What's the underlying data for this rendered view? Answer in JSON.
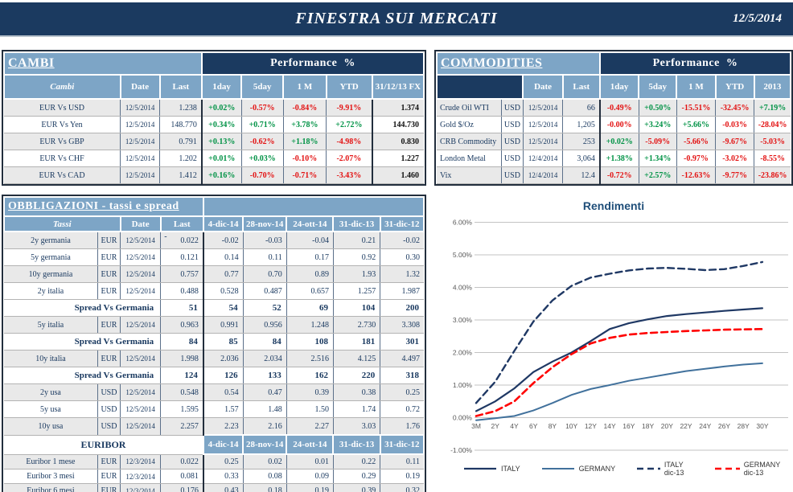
{
  "header": {
    "title": "FINESTRA SUI MERCATI",
    "date": "12/5/2014"
  },
  "colors": {
    "navy": "#1B3A60",
    "header_blue": "#7DA5C6",
    "row_alt": "#E9E9E9",
    "green": "#009245",
    "red": "#E31212",
    "text_navy": "#17375E",
    "grid_gray": "#C3C3C3"
  },
  "cambi": {
    "title": "CAMBI",
    "performance_label": "Performance  %",
    "columns": {
      "name": "Cambi",
      "date": "Date",
      "last": "Last",
      "perf": [
        "1day",
        "5day",
        "1 M",
        "YTD"
      ],
      "fx": "31/12/13 FX"
    },
    "rows": [
      {
        "name": "EUR Vs USD",
        "date": "12/5/2014",
        "last": "1.238",
        "perf": [
          "+0.02%",
          "-0.57%",
          "-0.84%",
          "-9.91%"
        ],
        "fx": "1.374"
      },
      {
        "name": "EUR Vs Yen",
        "date": "12/5/2014",
        "last": "148.770",
        "perf": [
          "+0.34%",
          "+0.71%",
          "+3.78%",
          "+2.72%"
        ],
        "fx": "144.730"
      },
      {
        "name": "EUR Vs GBP",
        "date": "12/5/2014",
        "last": "0.791",
        "perf": [
          "+0.13%",
          "-0.62%",
          "+1.18%",
          "-4.98%"
        ],
        "fx": "0.830"
      },
      {
        "name": "EUR Vs CHF",
        "date": "12/5/2014",
        "last": "1.202",
        "perf": [
          "+0.01%",
          "+0.03%",
          "-0.10%",
          "-2.07%"
        ],
        "fx": "1.227"
      },
      {
        "name": "EUR Vs CAD",
        "date": "12/5/2014",
        "last": "1.412",
        "perf": [
          "+0.16%",
          "-0.70%",
          "-0.71%",
          "-3.43%"
        ],
        "fx": "1.460"
      }
    ]
  },
  "commodities": {
    "title": "COMMODITIES",
    "performance_label": "Performance  %",
    "columns": {
      "date": "Date",
      "last": "Last",
      "perf": [
        "1day",
        "5day",
        "1 M",
        "YTD",
        "2013"
      ]
    },
    "rows": [
      {
        "name": "Crude Oil WTI",
        "ccy": "USD",
        "date": "12/5/2014",
        "last": "66",
        "perf": [
          "-0.49%",
          "+0.50%",
          "-15.51%",
          "-32.45%",
          "+7.19%"
        ]
      },
      {
        "name": "Gold $/Oz",
        "ccy": "USD",
        "date": "12/5/2014",
        "last": "1,205",
        "perf": [
          "-0.00%",
          "+3.24%",
          "+5.66%",
          "-0.03%",
          "-28.04%"
        ]
      },
      {
        "name": "CRB Commodity",
        "ccy": "USD",
        "date": "12/5/2014",
        "last": "253",
        "perf": [
          "+0.02%",
          "-5.09%",
          "-5.66%",
          "-9.67%",
          "-5.03%"
        ]
      },
      {
        "name": "London Metal",
        "ccy": "USD",
        "date": "12/4/2014",
        "last": "3,064",
        "perf": [
          "+1.38%",
          "+1.34%",
          "-0.97%",
          "-3.02%",
          "-8.55%"
        ]
      },
      {
        "name": "Vix",
        "ccy": "USD",
        "date": "12/4/2014",
        "last": "12.4",
        "perf": [
          "-0.72%",
          "+2.57%",
          "-12.63%",
          "-9.77%",
          "-23.86%"
        ]
      }
    ]
  },
  "obbligazioni": {
    "title": "OBBLIGAZIONI - tassi e spread",
    "columns": {
      "name": "Tassi",
      "date": "Date",
      "last": "Last",
      "dates": [
        "4-dic-14",
        "28-nov-14",
        "24-ott-14",
        "31-dic-13",
        "31-dic-12"
      ]
    },
    "rows": [
      {
        "type": "rate",
        "name": "2y germania",
        "ccy": "EUR",
        "date": "12/5/2014",
        "last_dash": "-",
        "last": "0.022",
        "values": [
          "-0.02",
          "-0.03",
          "-0.04",
          "0.21",
          "-0.02"
        ]
      },
      {
        "type": "rate",
        "name": "5y germania",
        "ccy": "EUR",
        "date": "12/5/2014",
        "last_dash": "",
        "last": "0.121",
        "values": [
          "0.14",
          "0.11",
          "0.17",
          "0.92",
          "0.30"
        ]
      },
      {
        "type": "rate",
        "name": "10y germania",
        "ccy": "EUR",
        "date": "12/5/2014",
        "last_dash": "",
        "last": "0.757",
        "values": [
          "0.77",
          "0.70",
          "0.89",
          "1.93",
          "1.32"
        ]
      },
      {
        "type": "rate",
        "name": "2y italia",
        "ccy": "EUR",
        "date": "12/5/2014",
        "last_dash": "",
        "last": "0.488",
        "values": [
          "0.528",
          "0.487",
          "0.657",
          "1.257",
          "1.987"
        ]
      },
      {
        "type": "spread",
        "label": "Spread Vs Germania",
        "last": "51",
        "values": [
          "54",
          "52",
          "69",
          "104",
          "200"
        ]
      },
      {
        "type": "rate",
        "name": "5y italia",
        "ccy": "EUR",
        "date": "12/5/2014",
        "last_dash": "",
        "last": "0.963",
        "values": [
          "0.991",
          "0.956",
          "1.248",
          "2.730",
          "3.308"
        ]
      },
      {
        "type": "spread",
        "label": "Spread Vs Germania",
        "last": "84",
        "values": [
          "85",
          "84",
          "108",
          "181",
          "301"
        ]
      },
      {
        "type": "rate",
        "name": "10y italia",
        "ccy": "EUR",
        "date": "12/5/2014",
        "last_dash": "",
        "last": "1.998",
        "values": [
          "2.036",
          "2.034",
          "2.516",
          "4.125",
          "4.497"
        ]
      },
      {
        "type": "spread",
        "label": "Spread Vs Germania",
        "last": "124",
        "values": [
          "126",
          "133",
          "162",
          "220",
          "318"
        ]
      },
      {
        "type": "rate",
        "name": "2y usa",
        "ccy": "USD",
        "date": "12/5/2014",
        "last_dash": "",
        "last": "0.548",
        "values": [
          "0.54",
          "0.47",
          "0.39",
          "0.38",
          "0.25"
        ]
      },
      {
        "type": "rate",
        "name": "5y usa",
        "ccy": "USD",
        "date": "12/5/2014",
        "last_dash": "",
        "last": "1.595",
        "values": [
          "1.57",
          "1.48",
          "1.50",
          "1.74",
          "0.72"
        ]
      },
      {
        "type": "rate",
        "name": "10y usa",
        "ccy": "USD",
        "date": "12/5/2014",
        "last_dash": "",
        "last": "2.257",
        "values": [
          "2.23",
          "2.16",
          "2.27",
          "3.03",
          "1.76"
        ]
      }
    ],
    "euribor": {
      "label": "EURIBOR",
      "dates": [
        "4-dic-14",
        "28-nov-14",
        "24-ott-14",
        "31-dic-13",
        "31-dic-12"
      ],
      "rows": [
        {
          "name": "Euribor 1 mese",
          "ccy": "EUR",
          "date": "12/3/2014",
          "last": "0.022",
          "values": [
            "0.25",
            "0.02",
            "0.01",
            "0.22",
            "0.11"
          ]
        },
        {
          "name": "Euribor 3 mesi",
          "ccy": "EUR",
          "date": "12/3/2014",
          "last": "0.081",
          "values": [
            "0.33",
            "0.08",
            "0.09",
            "0.29",
            "0.19"
          ]
        },
        {
          "name": "Euribor 6 mesi",
          "ccy": "EUR",
          "date": "12/3/2014",
          "last": "0.176",
          "values": [
            "0.43",
            "0.18",
            "0.19",
            "0.39",
            "0.32"
          ]
        },
        {
          "name": "Euribor 12 mesi",
          "ccy": "EUR",
          "date": "12/3/2014",
          "last": "0.328",
          "values": [
            "0.60",
            "0.33",
            "0.34",
            "0.56",
            "0.54"
          ]
        }
      ]
    }
  },
  "chart_data": {
    "type": "line",
    "title": "Rendimenti",
    "x_labels": [
      "3M",
      "2Y",
      "4Y",
      "6Y",
      "8Y",
      "10Y",
      "12Y",
      "14Y",
      "16Y",
      "18Y",
      "20Y",
      "22Y",
      "24Y",
      "26Y",
      "28Y",
      "30Y"
    ],
    "y_ticks": [
      "6.00%",
      "5.00%",
      "4.00%",
      "3.00%",
      "2.00%",
      "1.00%",
      "0.00%",
      "-1.00%"
    ],
    "ylim": [
      -1,
      6
    ],
    "grid": true,
    "legend_position": "bottom",
    "series": [
      {
        "name": "ITALY",
        "color": "#1F3864",
        "dash": "",
        "width": 2.2,
        "values": [
          0.2,
          0.5,
          0.9,
          1.4,
          1.72,
          2.0,
          2.35,
          2.72,
          2.9,
          3.02,
          3.12,
          3.18,
          3.23,
          3.28,
          3.32,
          3.36
        ]
      },
      {
        "name": "GERMANY",
        "color": "#41719C",
        "dash": "",
        "width": 2,
        "values": [
          -0.08,
          -0.02,
          0.05,
          0.22,
          0.45,
          0.7,
          0.88,
          1.0,
          1.13,
          1.23,
          1.33,
          1.43,
          1.5,
          1.57,
          1.63,
          1.67
        ]
      },
      {
        "name": "ITALY dic-13",
        "color": "#1F3864",
        "dash": "8,5",
        "width": 2.4,
        "values": [
          0.45,
          1.1,
          2.05,
          2.95,
          3.6,
          4.05,
          4.3,
          4.42,
          4.52,
          4.58,
          4.6,
          4.57,
          4.53,
          4.56,
          4.66,
          4.78
        ]
      },
      {
        "name": "GERMANY dic-13",
        "color": "#FF0000",
        "dash": "8,5",
        "width": 2.6,
        "values": [
          0.05,
          0.2,
          0.5,
          1.06,
          1.55,
          1.95,
          2.28,
          2.45,
          2.55,
          2.6,
          2.63,
          2.66,
          2.68,
          2.7,
          2.71,
          2.72
        ]
      }
    ]
  }
}
